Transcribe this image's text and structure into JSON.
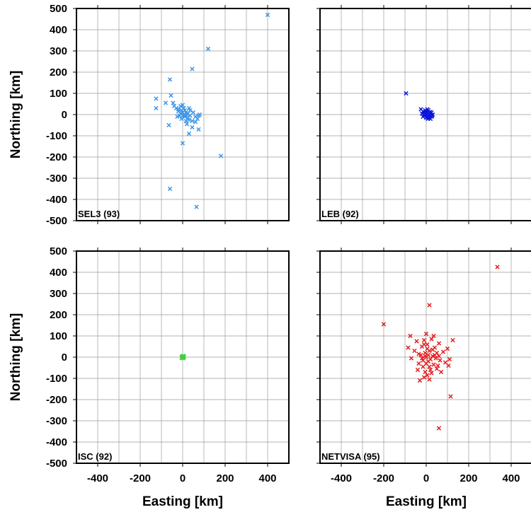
{
  "chart_data": [
    {
      "type": "scatter",
      "label": "SEL3 (93)",
      "color": "#3a95e8",
      "xlim": [
        -500,
        500
      ],
      "ylim": [
        -500,
        500
      ],
      "show_y_axis": true,
      "show_x_axis": false,
      "points": [
        [
          400,
          470
        ],
        [
          120,
          310
        ],
        [
          45,
          215
        ],
        [
          -60,
          165
        ],
        [
          -125,
          75
        ],
        [
          -125,
          30
        ],
        [
          -80,
          55
        ],
        [
          -55,
          90
        ],
        [
          -45,
          55
        ],
        [
          -40,
          40
        ],
        [
          -30,
          30
        ],
        [
          -20,
          25
        ],
        [
          -10,
          40
        ],
        [
          0,
          45
        ],
        [
          5,
          30
        ],
        [
          -5,
          20
        ],
        [
          10,
          20
        ],
        [
          15,
          10
        ],
        [
          0,
          10
        ],
        [
          -10,
          5
        ],
        [
          5,
          0
        ],
        [
          20,
          0
        ],
        [
          -15,
          -5
        ],
        [
          0,
          -5
        ],
        [
          10,
          -10
        ],
        [
          25,
          -15
        ],
        [
          35,
          -5
        ],
        [
          -5,
          -20
        ],
        [
          30,
          -25
        ],
        [
          45,
          -30
        ],
        [
          60,
          -35
        ],
        [
          70,
          -20
        ],
        [
          75,
          -5
        ],
        [
          80,
          0
        ],
        [
          35,
          20
        ],
        [
          30,
          30
        ],
        [
          50,
          10
        ],
        [
          20,
          -45
        ],
        [
          45,
          -60
        ],
        [
          75,
          -70
        ],
        [
          30,
          -90
        ],
        [
          0,
          -135
        ],
        [
          -65,
          -50
        ],
        [
          180,
          -195
        ],
        [
          -60,
          -350
        ],
        [
          65,
          -435
        ],
        [
          -25,
          -10
        ],
        [
          15,
          -30
        ],
        [
          60,
          -10
        ],
        [
          -20,
          15
        ],
        [
          25,
          5
        ],
        [
          10,
          -5
        ]
      ]
    },
    {
      "type": "scatter",
      "label": "LEB (92)",
      "color": "#0a14d8",
      "xlim": [
        -500,
        500
      ],
      "ylim": [
        -500,
        500
      ],
      "show_y_axis": false,
      "show_x_axis": false,
      "points": [
        [
          -95,
          100
        ],
        [
          -25,
          25
        ],
        [
          -15,
          15
        ],
        [
          -10,
          10
        ],
        [
          -5,
          20
        ],
        [
          0,
          15
        ],
        [
          5,
          10
        ],
        [
          10,
          5
        ],
        [
          15,
          0
        ],
        [
          20,
          5
        ],
        [
          0,
          0
        ],
        [
          -5,
          -5
        ],
        [
          5,
          -10
        ],
        [
          10,
          -15
        ],
        [
          15,
          -5
        ],
        [
          25,
          -10
        ],
        [
          -10,
          0
        ],
        [
          0,
          -15
        ],
        [
          20,
          -20
        ],
        [
          25,
          10
        ],
        [
          -20,
          5
        ],
        [
          10,
          20
        ],
        [
          30,
          0
        ],
        [
          5,
          25
        ],
        [
          -15,
          -10
        ],
        [
          12,
          -2
        ],
        [
          -2,
          8
        ],
        [
          18,
          12
        ],
        [
          8,
          -20
        ],
        [
          28,
          -5
        ]
      ]
    },
    {
      "type": "scatter",
      "label": "ISC (92)",
      "color": "#40d040",
      "xlim": [
        -500,
        500
      ],
      "ylim": [
        -500,
        500
      ],
      "show_y_axis": true,
      "show_x_axis": true,
      "points": [
        [
          0,
          0
        ],
        [
          3,
          2
        ],
        [
          -3,
          -2
        ],
        [
          5,
          5
        ],
        [
          -2,
          3
        ],
        [
          2,
          -4
        ],
        [
          4,
          0
        ],
        [
          -4,
          1
        ],
        [
          1,
          6
        ],
        [
          6,
          -1
        ],
        [
          0,
          -5
        ],
        [
          -5,
          -3
        ]
      ]
    },
    {
      "type": "scatter",
      "label": "NETVISA (95)",
      "color": "#e61a1a",
      "xlim": [
        -500,
        500
      ],
      "ylim": [
        -500,
        500
      ],
      "show_y_axis": false,
      "show_x_axis": true,
      "points": [
        [
          335,
          425
        ],
        [
          15,
          245
        ],
        [
          -200,
          155
        ],
        [
          115,
          -185
        ],
        [
          60,
          -335
        ],
        [
          -75,
          100
        ],
        [
          -85,
          45
        ],
        [
          -70,
          -5
        ],
        [
          -55,
          30
        ],
        [
          -45,
          75
        ],
        [
          -35,
          -30
        ],
        [
          -25,
          10
        ],
        [
          -20,
          50
        ],
        [
          -15,
          -45
        ],
        [
          -10,
          80
        ],
        [
          -5,
          20
        ],
        [
          0,
          110
        ],
        [
          5,
          60
        ],
        [
          10,
          -20
        ],
        [
          15,
          30
        ],
        [
          20,
          -60
        ],
        [
          25,
          85
        ],
        [
          30,
          5
        ],
        [
          35,
          -35
        ],
        [
          40,
          45
        ],
        [
          45,
          -5
        ],
        [
          50,
          20
        ],
        [
          55,
          -40
        ],
        [
          60,
          65
        ],
        [
          65,
          -15
        ],
        [
          70,
          -70
        ],
        [
          80,
          25
        ],
        [
          90,
          -25
        ],
        [
          100,
          40
        ],
        [
          110,
          -10
        ],
        [
          125,
          80
        ],
        [
          -5,
          -70
        ],
        [
          -10,
          -95
        ],
        [
          5,
          -85
        ],
        [
          15,
          -105
        ],
        [
          -30,
          -110
        ],
        [
          25,
          -75
        ],
        [
          0,
          0
        ],
        [
          -5,
          5
        ],
        [
          10,
          10
        ],
        [
          20,
          -10
        ],
        [
          -15,
          -15
        ],
        [
          30,
          35
        ],
        [
          -20,
          -5
        ],
        [
          0,
          -30
        ],
        [
          40,
          10
        ],
        [
          -35,
          15
        ],
        [
          50,
          -55
        ],
        [
          5,
          40
        ],
        [
          -10,
          60
        ],
        [
          15,
          -45
        ],
        [
          60,
          5
        ],
        [
          -40,
          -60
        ],
        [
          35,
          100
        ],
        [
          105,
          -40
        ]
      ]
    }
  ],
  "axes": {
    "xlabel": "Easting [km]",
    "ylabel": "Northing [km]",
    "x_ticks": [
      -400,
      -200,
      0,
      200,
      400
    ],
    "y_ticks": [
      500,
      400,
      300,
      200,
      100,
      0,
      -100,
      -200,
      -300,
      -400,
      -500
    ],
    "grid": true,
    "grid_x_step": 100,
    "grid_y_step": 100
  }
}
